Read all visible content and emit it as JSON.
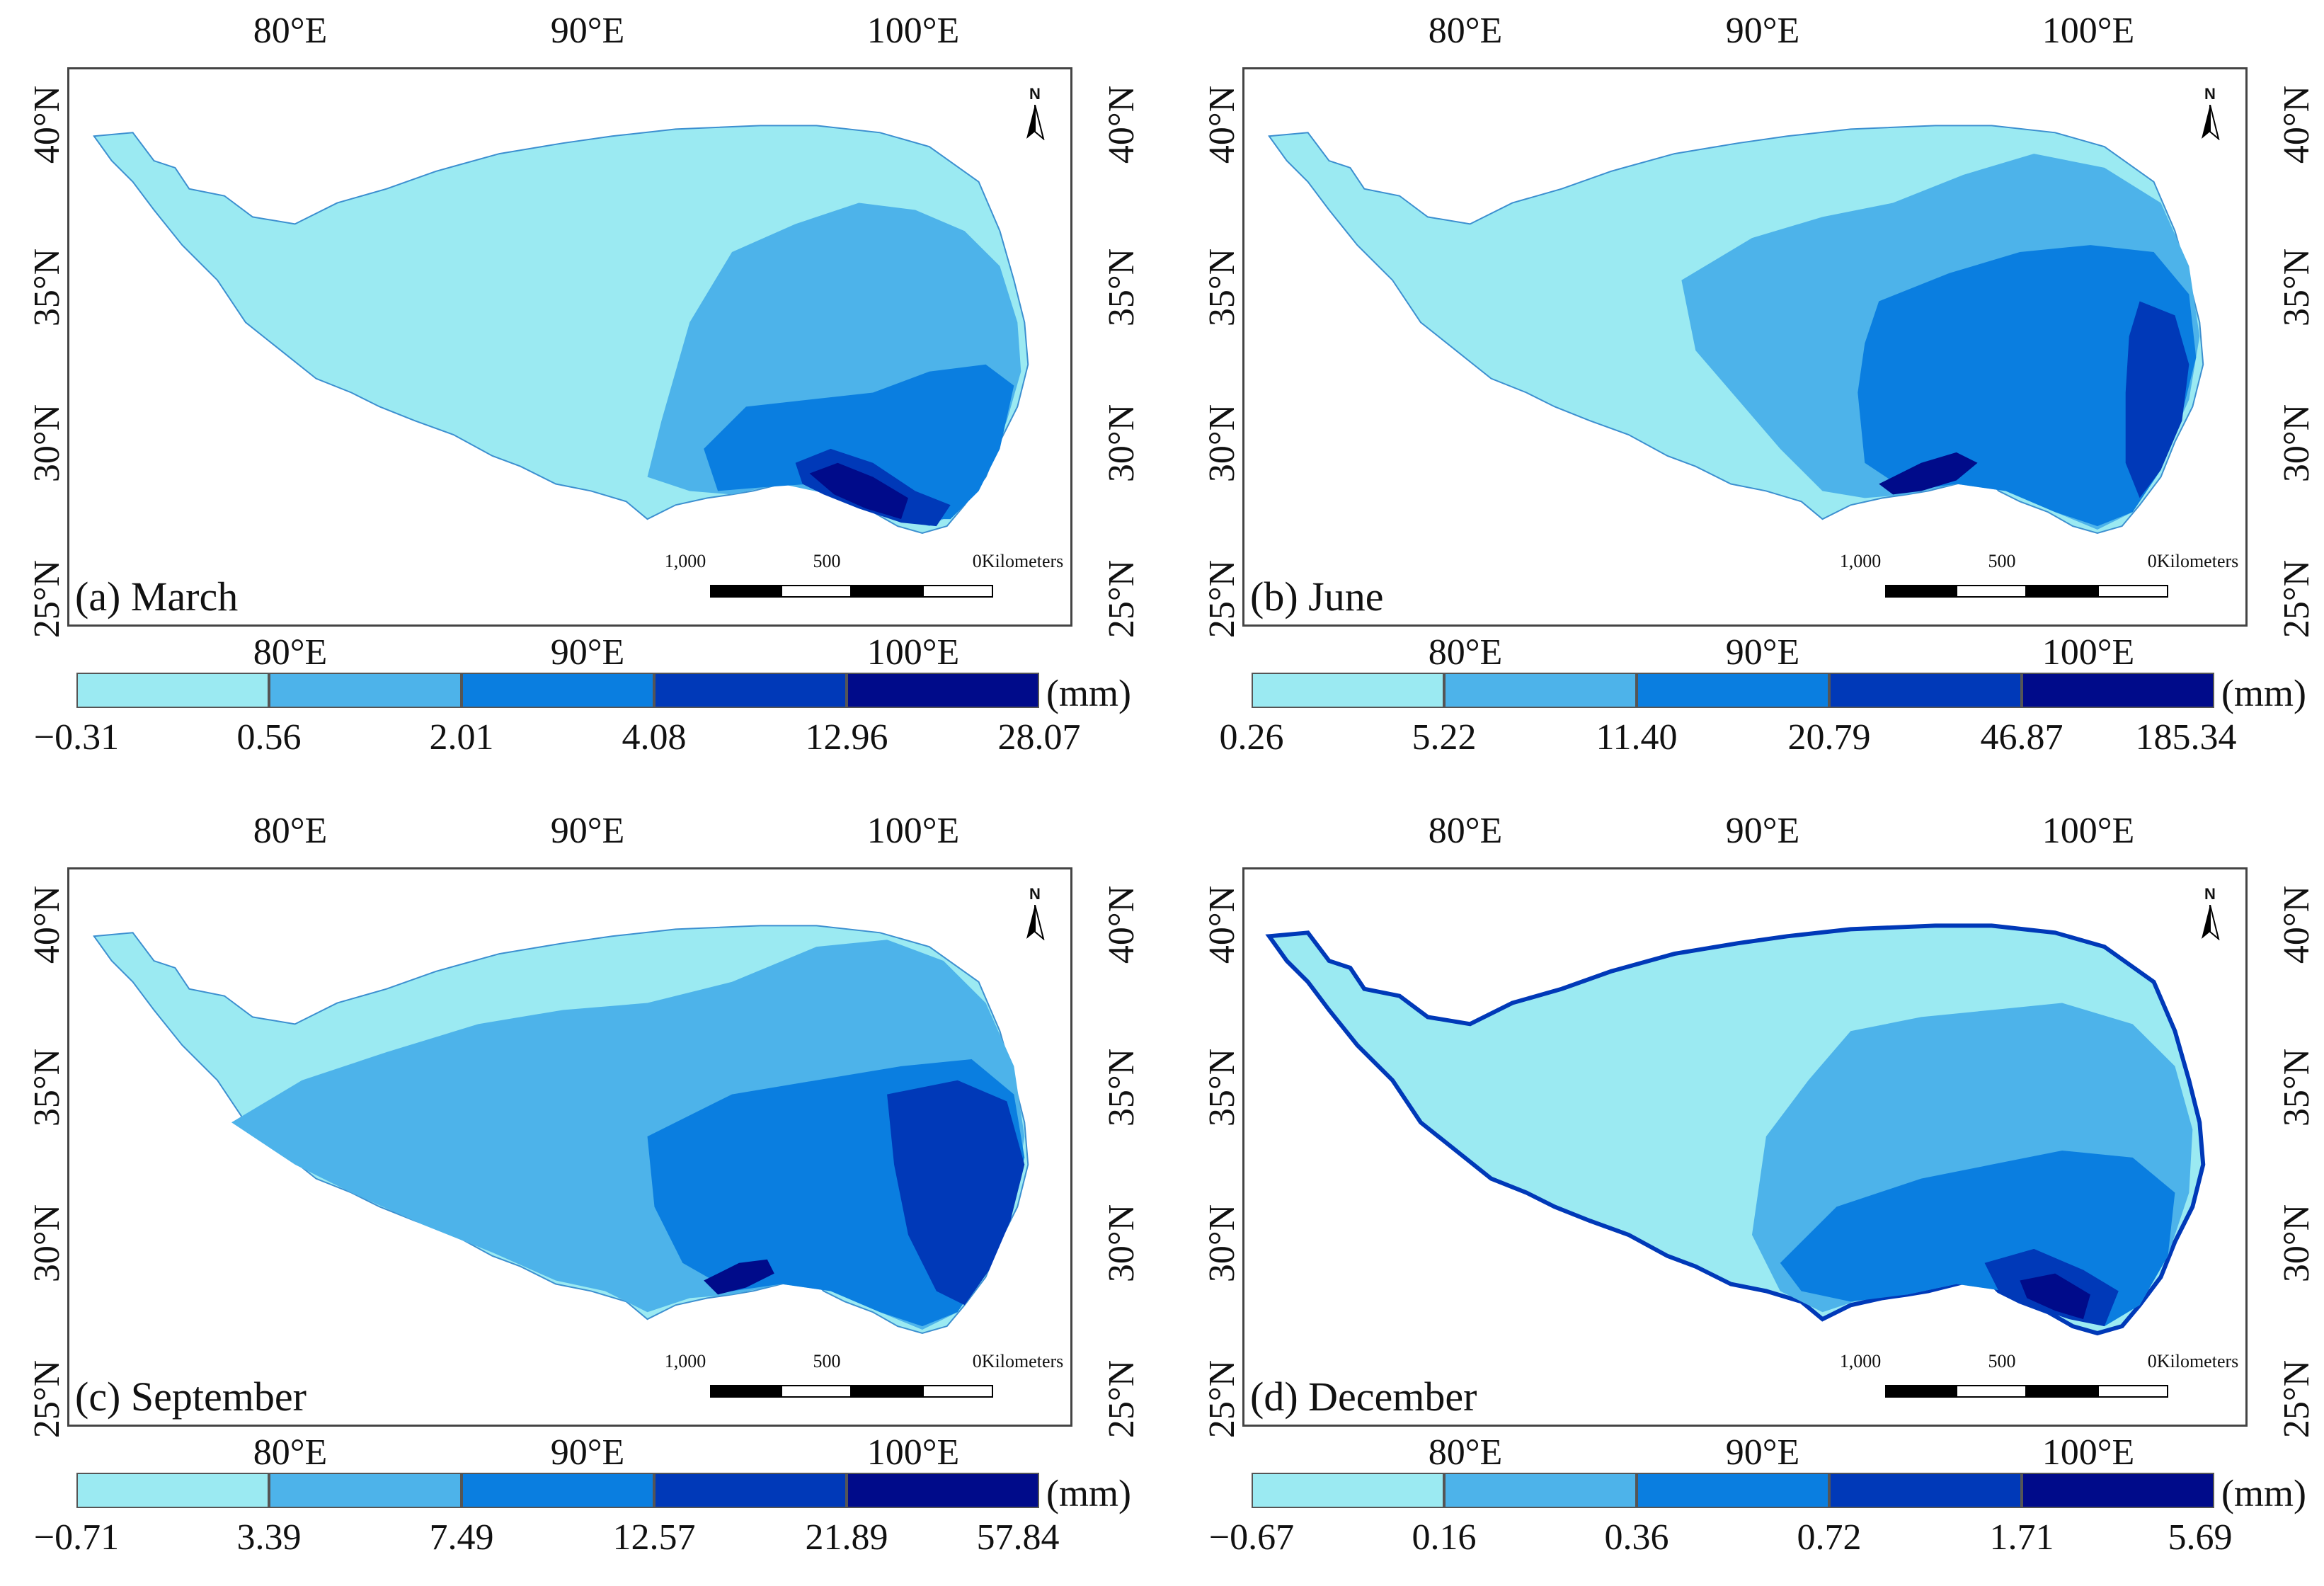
{
  "lon_labels": [
    "80°E",
    "90°E",
    "100°E"
  ],
  "lat_labels": [
    "40°N",
    "35°N",
    "30°N",
    "25°N"
  ],
  "legend_colors": [
    "#9beaf2",
    "#4db3ea",
    "#0a7ee0",
    "#0039b8",
    "#000b8a"
  ],
  "unit": "(mm)",
  "scalebar": {
    "labels": [
      "1,000",
      "500",
      "0Kilometers"
    ]
  },
  "north_arrow": {
    "letter": "N",
    "icon": "north-arrow-icon"
  },
  "panels": [
    {
      "id": "a",
      "title": "(a) March",
      "ticks": [
        "−0.31",
        "0.56",
        "2.01",
        "4.08",
        "12.96",
        "28.07"
      ]
    },
    {
      "id": "b",
      "title": "(b) June",
      "ticks": [
        "0.26",
        "5.22",
        "11.40",
        "20.79",
        "46.87",
        "185.34"
      ]
    },
    {
      "id": "c",
      "title": "(c) September",
      "ticks": [
        "−0.71",
        "3.39",
        "7.49",
        "12.57",
        "21.89",
        "57.84"
      ]
    },
    {
      "id": "d",
      "title": "(d) December",
      "ticks": [
        "−0.67",
        "0.16",
        "0.36",
        "0.72",
        "1.71",
        "5.69"
      ]
    }
  ]
}
